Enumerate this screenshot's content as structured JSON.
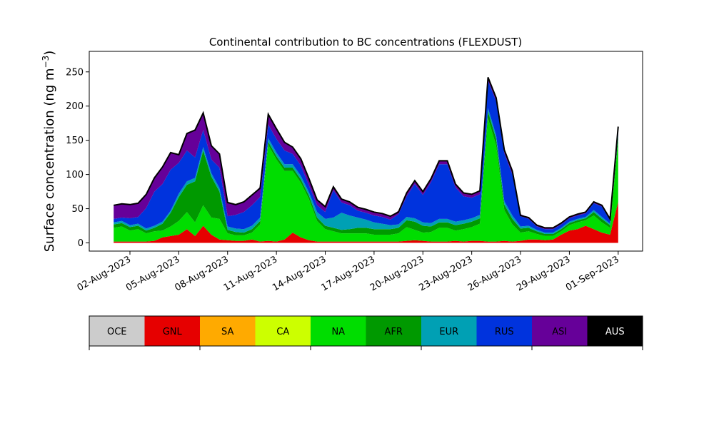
{
  "chart_data": {
    "type": "area",
    "stacked": true,
    "title": "Continental contribution to BC concentrations (FLEXDUST)",
    "ylabel": "Surface concentration (ng m",
    "ylabel_sup": "−3",
    "ylabel_close": ")",
    "xlabel": "",
    "ylim": [
      -12,
      280
    ],
    "yticks": [
      0,
      50,
      100,
      150,
      200,
      250
    ],
    "xlim": [
      "2023-07-30T12:00",
      "2023-09-02T12:00"
    ],
    "xtick_dates": [
      "2023-08-02",
      "2023-08-05",
      "2023-08-08",
      "2023-08-11",
      "2023-08-14",
      "2023-08-17",
      "2023-08-20",
      "2023-08-23",
      "2023-08-26",
      "2023-08-29",
      "2023-09-01"
    ],
    "xtick_labels": [
      "02-Aug-2023",
      "05-Aug-2023",
      "08-Aug-2023",
      "11-Aug-2023",
      "14-Aug-2023",
      "17-Aug-2023",
      "20-Aug-2023",
      "23-Aug-2023",
      "26-Aug-2023",
      "29-Aug-2023",
      "01-Sep-2023"
    ],
    "grid": false,
    "x": [
      "2023-08-01T00:00",
      "2023-08-01T12:00",
      "2023-08-02T00:00",
      "2023-08-02T12:00",
      "2023-08-03T00:00",
      "2023-08-03T12:00",
      "2023-08-04T00:00",
      "2023-08-04T12:00",
      "2023-08-05T00:00",
      "2023-08-05T12:00",
      "2023-08-06T00:00",
      "2023-08-06T12:00",
      "2023-08-07T00:00",
      "2023-08-07T12:00",
      "2023-08-08T00:00",
      "2023-08-08T12:00",
      "2023-08-09T00:00",
      "2023-08-09T12:00",
      "2023-08-10T00:00",
      "2023-08-10T12:00",
      "2023-08-11T00:00",
      "2023-08-11T12:00",
      "2023-08-12T00:00",
      "2023-08-12T12:00",
      "2023-08-13T00:00",
      "2023-08-13T12:00",
      "2023-08-14T00:00",
      "2023-08-14T12:00",
      "2023-08-15T00:00",
      "2023-08-15T12:00",
      "2023-08-16T00:00",
      "2023-08-16T12:00",
      "2023-08-17T00:00",
      "2023-08-17T12:00",
      "2023-08-18T00:00",
      "2023-08-18T12:00",
      "2023-08-19T00:00",
      "2023-08-19T12:00",
      "2023-08-20T00:00",
      "2023-08-20T12:00",
      "2023-08-21T00:00",
      "2023-08-21T12:00",
      "2023-08-22T00:00",
      "2023-08-22T12:00",
      "2023-08-23T00:00",
      "2023-08-23T12:00",
      "2023-08-24T00:00",
      "2023-08-24T12:00",
      "2023-08-25T00:00",
      "2023-08-25T12:00",
      "2023-08-26T00:00",
      "2023-08-26T12:00",
      "2023-08-27T00:00",
      "2023-08-27T12:00",
      "2023-08-28T00:00",
      "2023-08-28T12:00",
      "2023-08-29T00:00",
      "2023-08-29T12:00",
      "2023-08-30T00:00",
      "2023-08-30T12:00",
      "2023-08-31T00:00",
      "2023-08-31T12:00",
      "2023-09-01T00:00"
    ],
    "series": [
      {
        "name": "OCE",
        "color": "#cccccc",
        "values": [
          0,
          0,
          0,
          0,
          0,
          0,
          0,
          0,
          0,
          0,
          0,
          0,
          0,
          0,
          0,
          0,
          0,
          0,
          0,
          0,
          0,
          0,
          0,
          0,
          0,
          0,
          0,
          0,
          0,
          0,
          0,
          0,
          0,
          0,
          0,
          0,
          0,
          0,
          0,
          0,
          0,
          0,
          0,
          0,
          0,
          0,
          0,
          0,
          0,
          0,
          0,
          0,
          0,
          0,
          0,
          0,
          0,
          0,
          0,
          0,
          0,
          0,
          0
        ]
      },
      {
        "name": "GNL",
        "color": "#e60000",
        "values": [
          2,
          2,
          2,
          2,
          2,
          3,
          8,
          10,
          12,
          20,
          10,
          25,
          12,
          5,
          4,
          3,
          3,
          5,
          2,
          3,
          2,
          5,
          15,
          8,
          4,
          2,
          2,
          2,
          2,
          2,
          2,
          2,
          2,
          2,
          2,
          2,
          3,
          4,
          3,
          2,
          2,
          2,
          3,
          2,
          3,
          3,
          2,
          2,
          3,
          2,
          3,
          5,
          5,
          4,
          5,
          12,
          18,
          20,
          25,
          20,
          15,
          12,
          60
        ]
      },
      {
        "name": "SA",
        "color": "#ffaa00",
        "values": [
          0,
          0,
          0,
          0,
          0,
          0,
          0,
          0,
          0,
          0,
          0,
          0,
          0,
          0,
          0,
          0,
          0,
          0,
          0,
          0,
          0,
          0,
          0,
          0,
          0,
          0,
          0,
          0,
          0,
          0,
          0,
          0,
          0,
          0,
          0,
          0,
          0,
          0,
          0,
          0,
          0,
          0,
          0,
          0,
          0,
          0,
          0,
          0,
          0,
          0,
          0,
          0,
          0,
          0,
          0,
          0,
          0,
          0,
          0,
          0,
          0,
          0,
          0
        ]
      },
      {
        "name": "CA",
        "color": "#ccff00",
        "values": [
          0,
          0,
          0,
          0,
          0,
          0,
          0,
          0,
          0,
          0,
          0,
          0,
          0,
          0,
          0,
          0,
          0,
          0,
          0,
          0,
          0,
          0,
          0,
          0,
          0,
          0,
          0,
          0,
          0,
          0,
          0,
          0,
          0,
          0,
          0,
          0,
          0,
          0,
          0,
          0,
          0,
          0,
          0,
          0,
          0,
          0,
          0,
          0,
          0,
          0,
          0,
          0,
          0,
          0,
          0,
          0,
          0,
          0,
          0,
          0,
          0,
          0,
          0
        ]
      },
      {
        "name": "NA",
        "color": "#00dd00",
        "values": [
          20,
          22,
          16,
          18,
          12,
          14,
          10,
          14,
          20,
          25,
          20,
          30,
          25,
          30,
          10,
          8,
          8,
          10,
          25,
          140,
          120,
          100,
          90,
          80,
          60,
          30,
          18,
          15,
          12,
          12,
          12,
          12,
          10,
          10,
          10,
          12,
          20,
          15,
          12,
          14,
          20,
          20,
          15,
          18,
          20,
          25,
          180,
          140,
          45,
          25,
          12,
          12,
          8,
          6,
          5,
          5,
          8,
          10,
          8,
          20,
          15,
          10,
          90
        ]
      },
      {
        "name": "AFR",
        "color": "#009900",
        "values": [
          5,
          5,
          5,
          5,
          4,
          5,
          10,
          20,
          35,
          40,
          60,
          80,
          60,
          40,
          5,
          5,
          4,
          5,
          5,
          5,
          5,
          5,
          5,
          5,
          5,
          5,
          5,
          5,
          5,
          6,
          8,
          8,
          8,
          8,
          8,
          8,
          10,
          12,
          10,
          8,
          8,
          8,
          8,
          8,
          8,
          8,
          10,
          10,
          8,
          8,
          6,
          5,
          4,
          3,
          3,
          3,
          3,
          3,
          3,
          5,
          5,
          4,
          5
        ]
      },
      {
        "name": "EUR",
        "color": "#00a0b4",
        "values": [
          3,
          3,
          3,
          3,
          3,
          3,
          3,
          3,
          5,
          5,
          5,
          5,
          5,
          5,
          5,
          5,
          5,
          5,
          5,
          5,
          5,
          5,
          5,
          5,
          5,
          8,
          10,
          15,
          25,
          20,
          15,
          12,
          10,
          8,
          6,
          5,
          5,
          5,
          5,
          5,
          5,
          5,
          5,
          5,
          5,
          5,
          5,
          5,
          5,
          5,
          3,
          3,
          2,
          2,
          2,
          2,
          2,
          2,
          2,
          3,
          3,
          2,
          3
        ]
      },
      {
        "name": "RUS",
        "color": "#0033dd",
        "values": [
          5,
          5,
          10,
          10,
          30,
          50,
          55,
          60,
          45,
          45,
          30,
          25,
          20,
          30,
          15,
          20,
          25,
          30,
          30,
          20,
          20,
          20,
          15,
          15,
          10,
          10,
          10,
          40,
          15,
          15,
          10,
          10,
          10,
          10,
          8,
          15,
          30,
          50,
          40,
          60,
          80,
          80,
          50,
          35,
          30,
          30,
          40,
          50,
          70,
          60,
          15,
          10,
          5,
          5,
          5,
          5,
          5,
          5,
          5,
          10,
          15,
          5,
          10
        ]
      },
      {
        "name": "ASI",
        "color": "#660099",
        "values": [
          20,
          20,
          20,
          20,
          20,
          20,
          25,
          25,
          12,
          25,
          40,
          25,
          20,
          20,
          20,
          15,
          15,
          15,
          15,
          15,
          15,
          12,
          10,
          10,
          10,
          8,
          8,
          5,
          5,
          5,
          5,
          5,
          5,
          5,
          5,
          5,
          5,
          5,
          5,
          5,
          5,
          5,
          5,
          5,
          5,
          5,
          5,
          5,
          5,
          5,
          3,
          2,
          2,
          2,
          2,
          2,
          2,
          2,
          2,
          2,
          2,
          2,
          2
        ]
      },
      {
        "name": "AUS",
        "color": "#000000",
        "values": [
          0,
          0,
          0,
          0,
          0,
          0,
          0,
          0,
          0,
          0,
          0,
          0,
          0,
          0,
          0,
          0,
          0,
          0,
          0,
          0,
          0,
          0,
          0,
          0,
          0,
          0,
          0,
          0,
          0,
          0,
          0,
          0,
          0,
          0,
          0,
          0,
          0,
          0,
          0,
          0,
          0,
          0,
          0,
          0,
          0,
          0,
          0,
          0,
          0,
          0,
          0,
          0,
          0,
          0,
          0,
          0,
          0,
          0,
          0,
          0,
          0,
          0,
          0
        ]
      }
    ],
    "total": [
      55,
      57,
      56,
      58,
      71,
      95,
      111,
      132,
      129,
      160,
      165,
      190,
      142,
      130,
      59,
      56,
      60,
      70,
      80,
      188,
      167,
      147,
      140,
      123,
      94,
      63,
      53,
      82,
      64,
      60,
      52,
      49,
      45,
      43,
      39,
      45,
      73,
      91,
      75,
      94,
      120,
      120,
      86,
      73,
      71,
      76,
      242,
      212,
      136,
      105,
      40,
      37,
      26,
      22,
      22,
      29,
      38,
      42,
      45,
      60,
      55,
      35,
      170
    ]
  }
}
